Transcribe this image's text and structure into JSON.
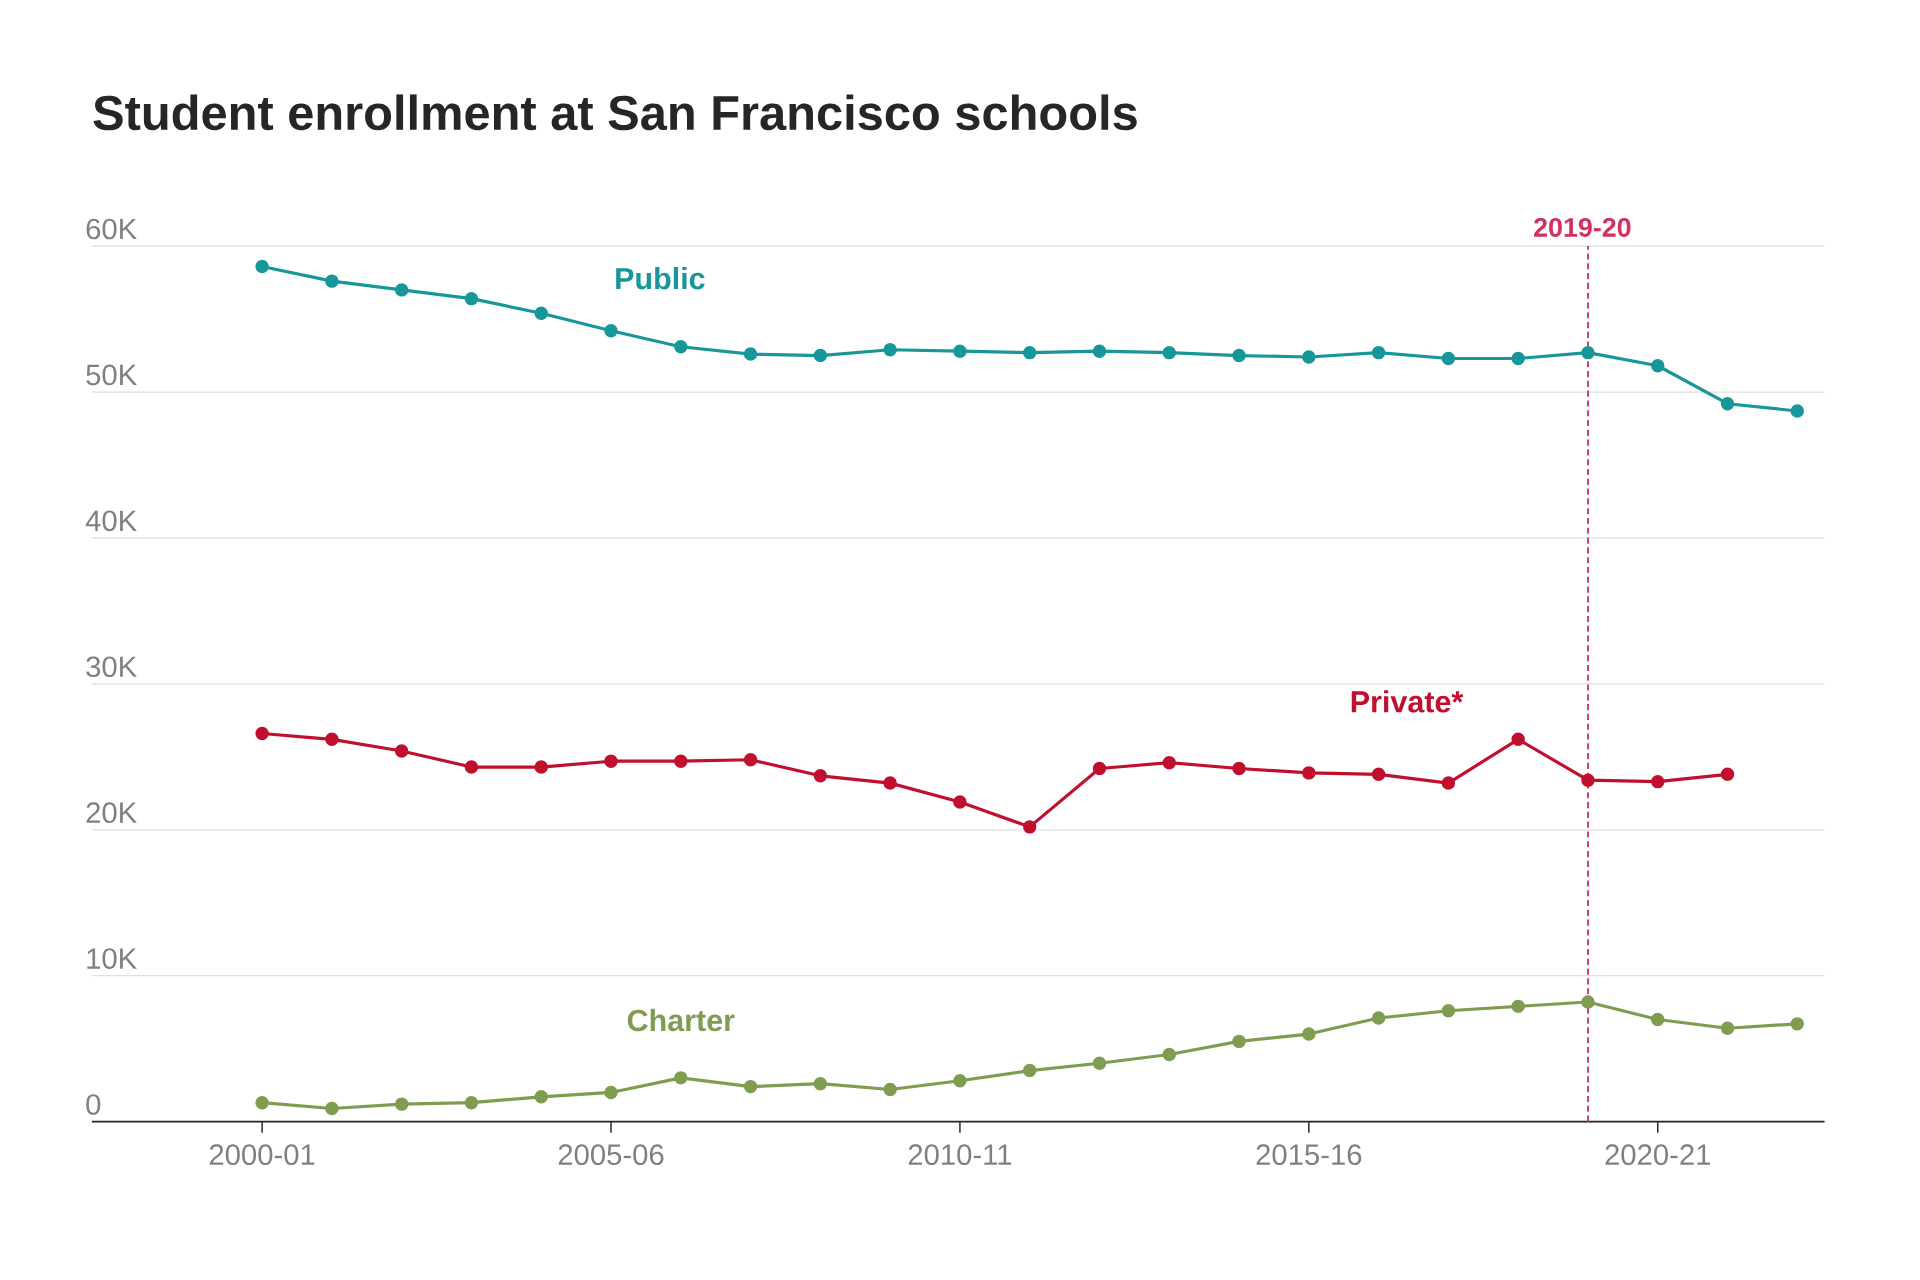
{
  "chart_data": {
    "type": "line",
    "title": "Student enrollment at San Francisco schools",
    "categories": [
      "2000-01",
      null,
      null,
      null,
      null,
      "2005-06",
      null,
      null,
      null,
      null,
      "2010-11",
      null,
      null,
      null,
      null,
      "2015-16",
      null,
      null,
      null,
      null,
      "2020-21",
      null,
      null
    ],
    "series": [
      {
        "name": "Public",
        "color": "#17979a",
        "values": [
          58600,
          57600,
          57000,
          56400,
          55400,
          54200,
          53100,
          52600,
          52500,
          52900,
          52800,
          52700,
          52800,
          52700,
          52500,
          52400,
          52700,
          52300,
          52300,
          52700,
          51800,
          49200,
          48700
        ]
      },
      {
        "name": "Private*",
        "color": "#c0102e",
        "values": [
          26600,
          26200,
          25400,
          24300,
          24300,
          24700,
          24700,
          24800,
          23700,
          23200,
          21900,
          20200,
          24200,
          24600,
          24200,
          23900,
          23800,
          23200,
          26200,
          23400,
          23300,
          23800,
          null
        ]
      },
      {
        "name": "Charter",
        "color": "#7f9d50",
        "values": [
          1300,
          900,
          1200,
          1300,
          1700,
          2000,
          3000,
          2400,
          2600,
          2200,
          2800,
          3500,
          4000,
          4600,
          5500,
          6000,
          7100,
          7600,
          7900,
          8200,
          7000,
          6400,
          6700
        ]
      }
    ],
    "ylim": [
      0,
      60000
    ],
    "yticks": [
      0,
      {
        "value": 10000,
        "label": "10K"
      },
      {
        "value": 20000,
        "label": "20K"
      },
      {
        "value": 30000,
        "label": "30K"
      },
      {
        "value": 40000,
        "label": "40K"
      },
      {
        "value": 50000,
        "label": "50K"
      },
      {
        "value": 60000,
        "label": "60K"
      }
    ],
    "annotations": [
      "2019-20"
    ],
    "grid": "y",
    "marker": "circle",
    "line_style": "solid"
  }
}
